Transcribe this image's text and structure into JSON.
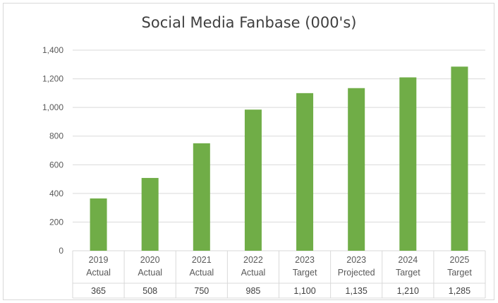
{
  "chart_data": {
    "type": "bar",
    "title": "Social Media Fanbase (000's)",
    "categories": [
      [
        "2019",
        "Actual"
      ],
      [
        "2020",
        "Actual"
      ],
      [
        "2021",
        "Actual"
      ],
      [
        "2022",
        "Actual"
      ],
      [
        "2023",
        "Target"
      ],
      [
        "2023",
        "Projected"
      ],
      [
        "2024",
        "Target"
      ],
      [
        "2025",
        "Target"
      ]
    ],
    "values": [
      365,
      508,
      750,
      985,
      1100,
      1135,
      1210,
      1285
    ],
    "value_labels": [
      "365",
      "508",
      "750",
      "985",
      "1,100",
      "1,135",
      "1,210",
      "1,285"
    ],
    "yticks": [
      "0",
      "200",
      "400",
      "600",
      "800",
      "1,000",
      "1,200",
      "1,400"
    ],
    "ylim": [
      0,
      1400
    ],
    "grid": true,
    "data_table": true,
    "bar_color": "#70ad47",
    "grid_color": "#d9d9d9",
    "text_color": "#595959"
  }
}
